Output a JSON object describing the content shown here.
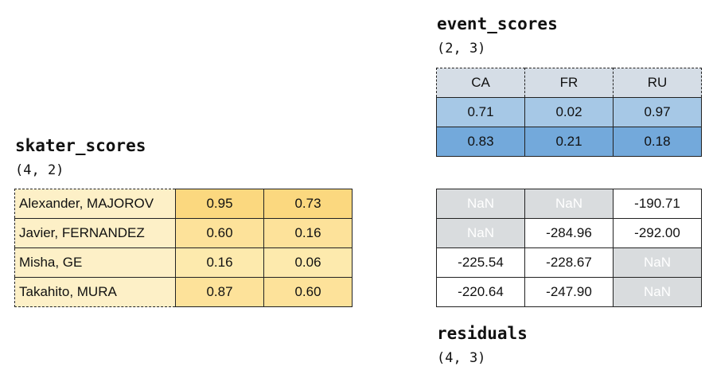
{
  "skater_scores": {
    "title": "skater_scores",
    "shape": "(4, 2)",
    "rows": [
      {
        "label": "Alexander, MAJOROV",
        "values": [
          "0.95",
          "0.73"
        ]
      },
      {
        "label": "Javier, FERNANDEZ",
        "values": [
          "0.60",
          "0.16"
        ]
      },
      {
        "label": "Misha, GE",
        "values": [
          "0.16",
          "0.06"
        ]
      },
      {
        "label": "Takahito, MURA",
        "values": [
          "0.87",
          "0.60"
        ]
      }
    ],
    "cell_colors": [
      [
        "#fbd87f",
        "#fbd87f"
      ],
      [
        "#fde29a",
        "#fde29a"
      ],
      [
        "#fdeaad",
        "#fdeaad"
      ],
      [
        "#fde29a",
        "#fde29a"
      ]
    ]
  },
  "event_scores": {
    "title": "event_scores",
    "shape": "(2, 3)",
    "columns": [
      "CA",
      "FR",
      "RU"
    ],
    "rows": [
      {
        "values": [
          "0.71",
          "0.02",
          "0.97"
        ]
      },
      {
        "values": [
          "0.83",
          "0.21",
          "0.18"
        ]
      }
    ],
    "row_colors": [
      "#a6c8e6",
      "#73a9db"
    ]
  },
  "residuals": {
    "title": "residuals",
    "shape": "(4, 3)",
    "rows": [
      {
        "values": [
          "NaN",
          "NaN",
          "-190.71"
        ]
      },
      {
        "values": [
          "NaN",
          "-284.96",
          "-292.00"
        ]
      },
      {
        "values": [
          "-225.54",
          "-228.67",
          "NaN"
        ]
      },
      {
        "values": [
          "-220.64",
          "-247.90",
          "NaN"
        ]
      }
    ],
    "nan_color": "#d9dcde"
  }
}
